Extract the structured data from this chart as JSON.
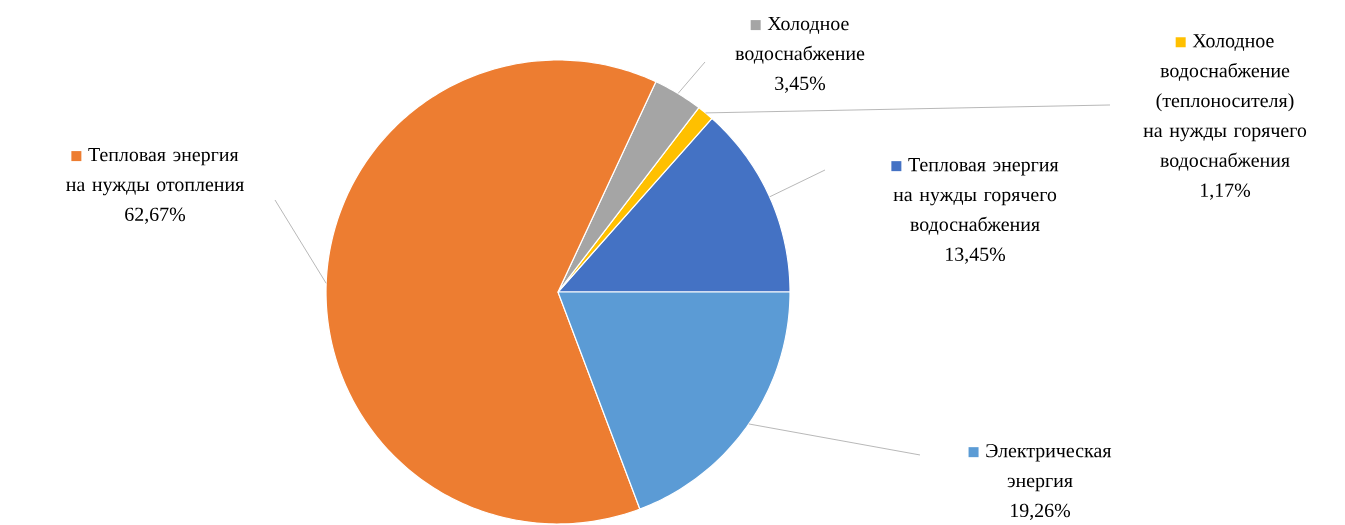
{
  "chart_data": {
    "type": "pie",
    "categories": [
      "Тепловая энергия на нужды горячего водоснабжения",
      "Холодное водоснабжение (теплоносителя) на нужды горячего водоснабжения",
      "Холодное водоснабжение",
      "Тепловая энергия на нужды отопления",
      "Электрическая энергия"
    ],
    "values": [
      13.45,
      1.17,
      3.45,
      62.67,
      19.26
    ],
    "colors": [
      "#4472c4",
      "#ffc000",
      "#a5a5a5",
      "#ed7d31",
      "#5b9bd5"
    ],
    "value_labels": [
      "13,45%",
      "1,17%",
      "3,45%",
      "62,67%",
      "19,26%"
    ],
    "legend": "right"
  }
}
